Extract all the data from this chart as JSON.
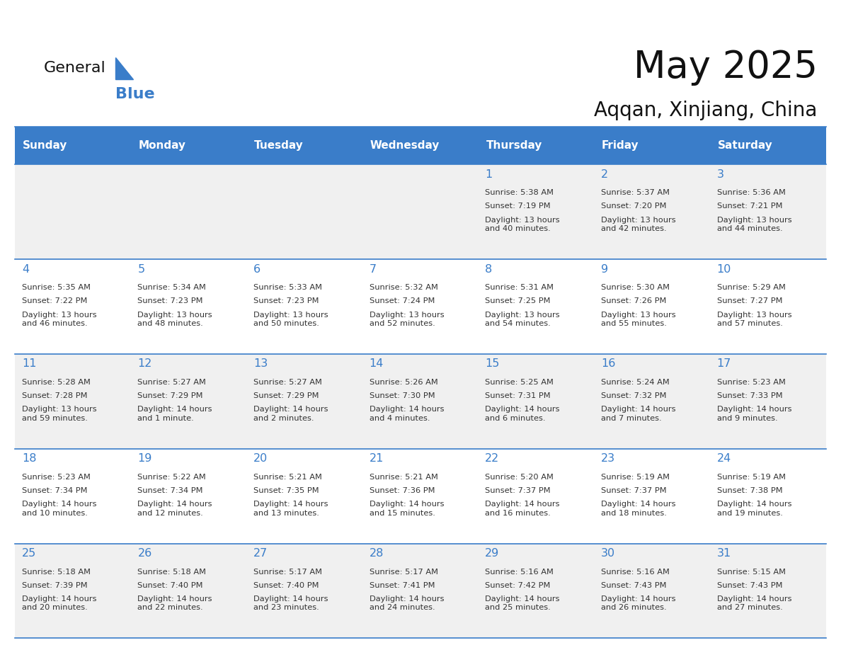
{
  "title": "May 2025",
  "subtitle": "Aqqan, Xinjiang, China",
  "header_color": "#3A7DC9",
  "header_text_color": "#FFFFFF",
  "bg_color": "#FFFFFF",
  "alt_row_color": "#F0F0F0",
  "day_names": [
    "Sunday",
    "Monday",
    "Tuesday",
    "Wednesday",
    "Thursday",
    "Friday",
    "Saturday"
  ],
  "cell_text_color": "#333333",
  "number_color": "#3A7DC9",
  "line_color": "#3A7DC9",
  "calendar": [
    [
      {
        "day": "",
        "sunrise": "",
        "sunset": "",
        "daylight": ""
      },
      {
        "day": "",
        "sunrise": "",
        "sunset": "",
        "daylight": ""
      },
      {
        "day": "",
        "sunrise": "",
        "sunset": "",
        "daylight": ""
      },
      {
        "day": "",
        "sunrise": "",
        "sunset": "",
        "daylight": ""
      },
      {
        "day": "1",
        "sunrise": "5:38 AM",
        "sunset": "7:19 PM",
        "daylight": "13 hours\nand 40 minutes."
      },
      {
        "day": "2",
        "sunrise": "5:37 AM",
        "sunset": "7:20 PM",
        "daylight": "13 hours\nand 42 minutes."
      },
      {
        "day": "3",
        "sunrise": "5:36 AM",
        "sunset": "7:21 PM",
        "daylight": "13 hours\nand 44 minutes."
      }
    ],
    [
      {
        "day": "4",
        "sunrise": "5:35 AM",
        "sunset": "7:22 PM",
        "daylight": "13 hours\nand 46 minutes."
      },
      {
        "day": "5",
        "sunrise": "5:34 AM",
        "sunset": "7:23 PM",
        "daylight": "13 hours\nand 48 minutes."
      },
      {
        "day": "6",
        "sunrise": "5:33 AM",
        "sunset": "7:23 PM",
        "daylight": "13 hours\nand 50 minutes."
      },
      {
        "day": "7",
        "sunrise": "5:32 AM",
        "sunset": "7:24 PM",
        "daylight": "13 hours\nand 52 minutes."
      },
      {
        "day": "8",
        "sunrise": "5:31 AM",
        "sunset": "7:25 PM",
        "daylight": "13 hours\nand 54 minutes."
      },
      {
        "day": "9",
        "sunrise": "5:30 AM",
        "sunset": "7:26 PM",
        "daylight": "13 hours\nand 55 minutes."
      },
      {
        "day": "10",
        "sunrise": "5:29 AM",
        "sunset": "7:27 PM",
        "daylight": "13 hours\nand 57 minutes."
      }
    ],
    [
      {
        "day": "11",
        "sunrise": "5:28 AM",
        "sunset": "7:28 PM",
        "daylight": "13 hours\nand 59 minutes."
      },
      {
        "day": "12",
        "sunrise": "5:27 AM",
        "sunset": "7:29 PM",
        "daylight": "14 hours\nand 1 minute."
      },
      {
        "day": "13",
        "sunrise": "5:27 AM",
        "sunset": "7:29 PM",
        "daylight": "14 hours\nand 2 minutes."
      },
      {
        "day": "14",
        "sunrise": "5:26 AM",
        "sunset": "7:30 PM",
        "daylight": "14 hours\nand 4 minutes."
      },
      {
        "day": "15",
        "sunrise": "5:25 AM",
        "sunset": "7:31 PM",
        "daylight": "14 hours\nand 6 minutes."
      },
      {
        "day": "16",
        "sunrise": "5:24 AM",
        "sunset": "7:32 PM",
        "daylight": "14 hours\nand 7 minutes."
      },
      {
        "day": "17",
        "sunrise": "5:23 AM",
        "sunset": "7:33 PM",
        "daylight": "14 hours\nand 9 minutes."
      }
    ],
    [
      {
        "day": "18",
        "sunrise": "5:23 AM",
        "sunset": "7:34 PM",
        "daylight": "14 hours\nand 10 minutes."
      },
      {
        "day": "19",
        "sunrise": "5:22 AM",
        "sunset": "7:34 PM",
        "daylight": "14 hours\nand 12 minutes."
      },
      {
        "day": "20",
        "sunrise": "5:21 AM",
        "sunset": "7:35 PM",
        "daylight": "14 hours\nand 13 minutes."
      },
      {
        "day": "21",
        "sunrise": "5:21 AM",
        "sunset": "7:36 PM",
        "daylight": "14 hours\nand 15 minutes."
      },
      {
        "day": "22",
        "sunrise": "5:20 AM",
        "sunset": "7:37 PM",
        "daylight": "14 hours\nand 16 minutes."
      },
      {
        "day": "23",
        "sunrise": "5:19 AM",
        "sunset": "7:37 PM",
        "daylight": "14 hours\nand 18 minutes."
      },
      {
        "day": "24",
        "sunrise": "5:19 AM",
        "sunset": "7:38 PM",
        "daylight": "14 hours\nand 19 minutes."
      }
    ],
    [
      {
        "day": "25",
        "sunrise": "5:18 AM",
        "sunset": "7:39 PM",
        "daylight": "14 hours\nand 20 minutes."
      },
      {
        "day": "26",
        "sunrise": "5:18 AM",
        "sunset": "7:40 PM",
        "daylight": "14 hours\nand 22 minutes."
      },
      {
        "day": "27",
        "sunrise": "5:17 AM",
        "sunset": "7:40 PM",
        "daylight": "14 hours\nand 23 minutes."
      },
      {
        "day": "28",
        "sunrise": "5:17 AM",
        "sunset": "7:41 PM",
        "daylight": "14 hours\nand 24 minutes."
      },
      {
        "day": "29",
        "sunrise": "5:16 AM",
        "sunset": "7:42 PM",
        "daylight": "14 hours\nand 25 minutes."
      },
      {
        "day": "30",
        "sunrise": "5:16 AM",
        "sunset": "7:43 PM",
        "daylight": "14 hours\nand 26 minutes."
      },
      {
        "day": "31",
        "sunrise": "5:15 AM",
        "sunset": "7:43 PM",
        "daylight": "14 hours\nand 27 minutes."
      }
    ]
  ]
}
